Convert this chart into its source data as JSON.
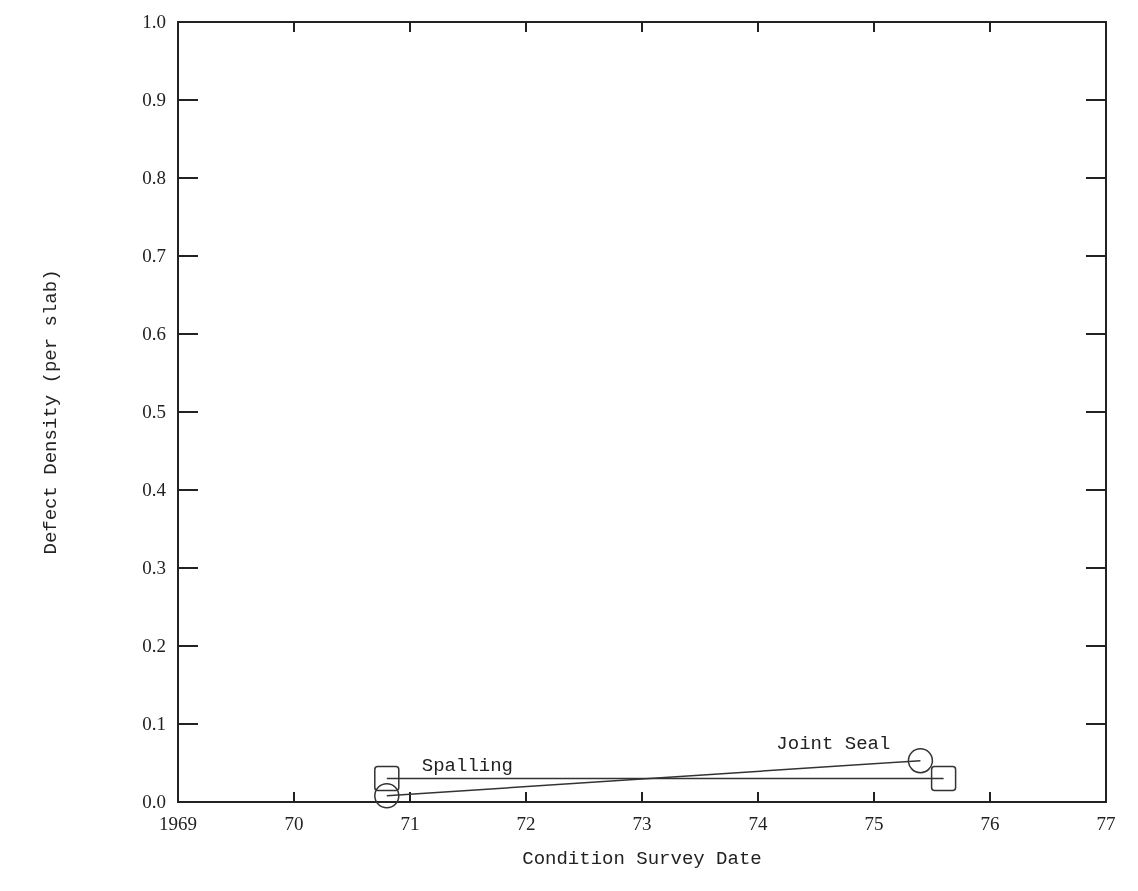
{
  "chart_data": {
    "type": "line",
    "xlabel": "Condition Survey Date",
    "ylabel": "Defect Density (per slab)",
    "xlim": [
      1969,
      1977
    ],
    "xticks": [
      1969,
      {
        "value": 1970,
        "label": "70"
      },
      {
        "value": 1971,
        "label": "71"
      },
      {
        "value": 1972,
        "label": "72"
      },
      {
        "value": 1973,
        "label": "73"
      },
      {
        "value": 1974,
        "label": "74"
      },
      {
        "value": 1975,
        "label": "75"
      },
      {
        "value": 1976,
        "label": "76"
      },
      {
        "value": 1977,
        "label": "77"
      }
    ],
    "ylim": [
      0,
      1
    ],
    "yticks": [
      {
        "value": 0,
        "label": "0.0"
      },
      0.1,
      0.2,
      0.3,
      0.4,
      0.5,
      0.6,
      0.7,
      0.8,
      0.9,
      {
        "value": 1,
        "label": "1.0"
      }
    ],
    "grid": false,
    "line_style": "solid",
    "series": [
      {
        "name": "Spalling",
        "color": "#333333",
        "marker": "square",
        "x": [
          1970.8,
          1975.6
        ],
        "values": [
          0.03,
          0.03
        ]
      },
      {
        "name": "Joint Seal",
        "color": "#333333",
        "marker": "circle",
        "x": [
          1970.8,
          1975.4
        ],
        "values": [
          0.008,
          0.053
        ]
      }
    ]
  }
}
